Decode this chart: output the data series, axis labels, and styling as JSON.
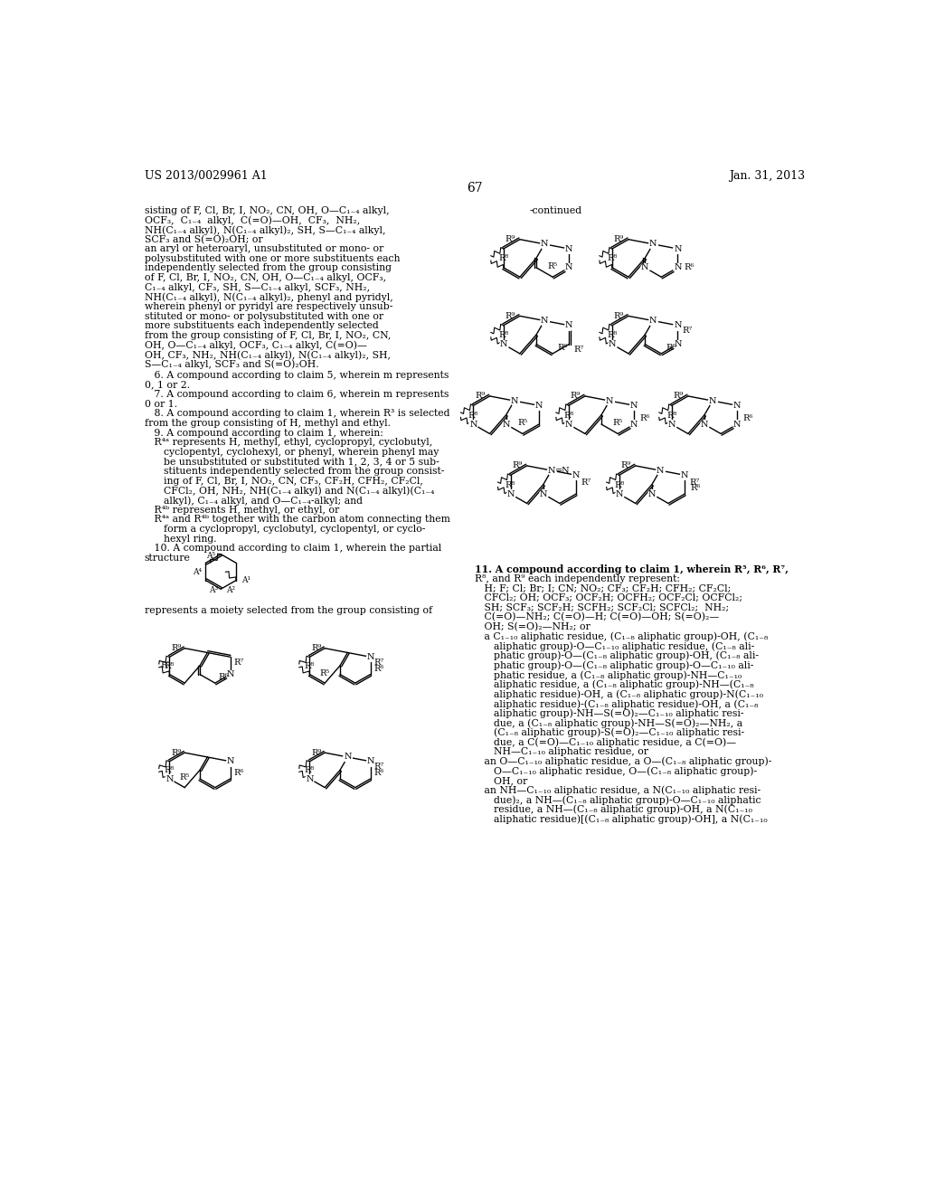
{
  "page_header_left": "US 2013/0029961 A1",
  "page_header_right": "Jan. 31, 2013",
  "page_number": "67",
  "bg_color": "#ffffff",
  "continued_label": "-continued"
}
